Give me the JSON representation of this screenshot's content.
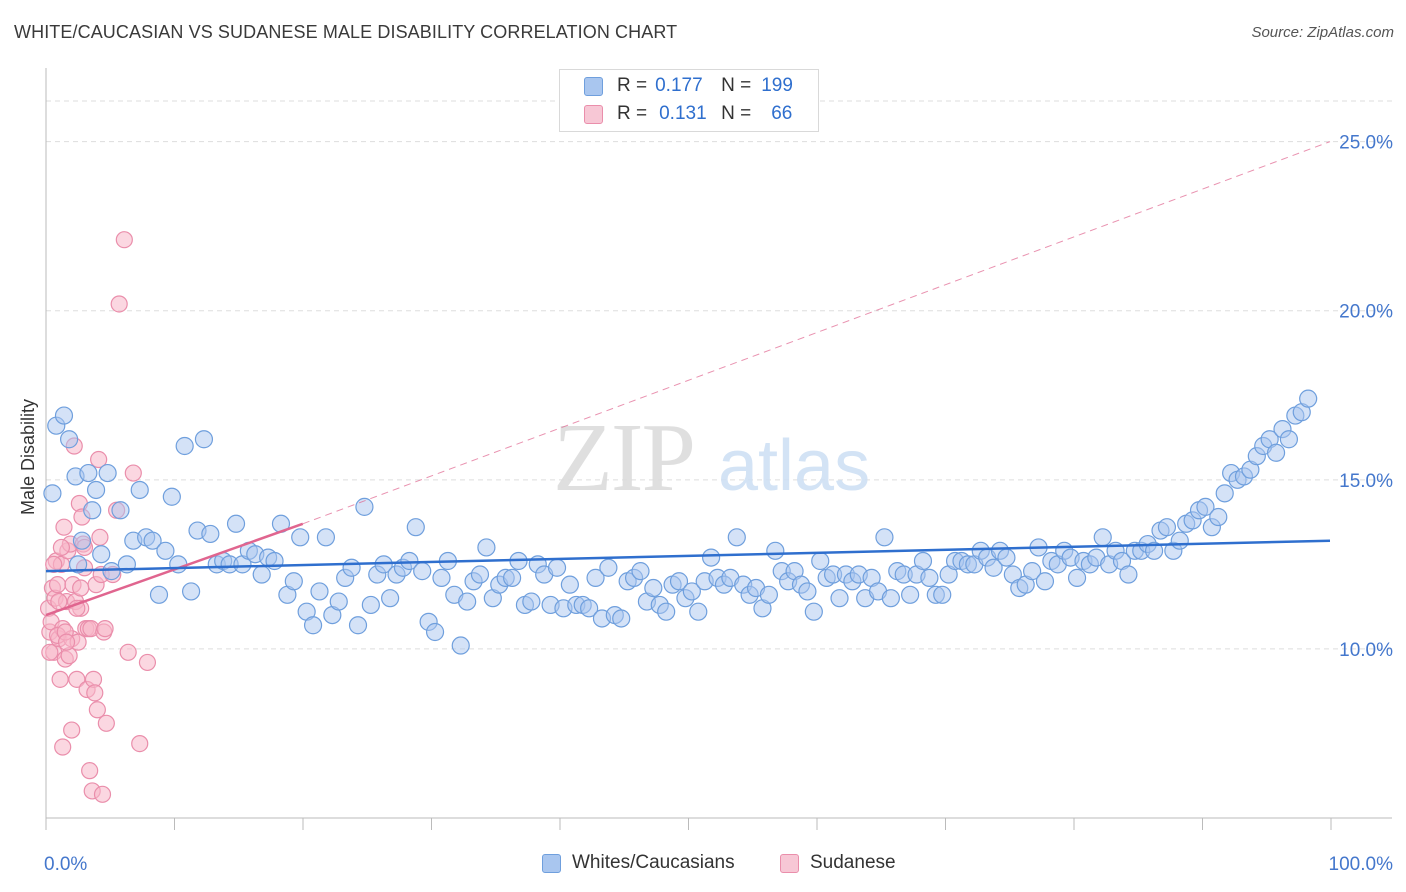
{
  "header": {
    "title": "WHITE/CAUCASIAN VS SUDANESE MALE DISABILITY CORRELATION CHART",
    "source": "Source: ZipAtlas.com"
  },
  "legend": {
    "row1": {
      "r_label": "R =",
      "r_value": "0.177",
      "n_label": "N =",
      "n_value": "199"
    },
    "row2": {
      "r_label": "R =",
      "r_value": "0.131",
      "n_label": "N =",
      "n_value": "66"
    }
  },
  "bottom_legend": {
    "series1": "Whites/Caucasians",
    "series2": "Sudanese"
  },
  "watermark": {
    "zip": "ZIP",
    "atlas": "atlas"
  },
  "colors": {
    "blue_fill": "#a9c6ef",
    "blue_stroke": "#6f9fdd",
    "blue_line": "#2f6fce",
    "pink_fill": "#f7b7c9",
    "pink_stroke": "#ea8eab",
    "pink_line": "#e0658f",
    "grid": "#dddddd",
    "tick_text": "#4477cc"
  },
  "chart_data": {
    "type": "scatter",
    "title": "WHITE/CAUCASIAN VS SUDANESE MALE DISABILITY CORRELATION CHART",
    "xlabel": "",
    "ylabel": "Male Disability",
    "xlim": [
      0,
      100
    ],
    "ylim": [
      5,
      27
    ],
    "x_tick_labels": [
      "0.0%",
      "100.0%"
    ],
    "y_ticks": [
      10,
      15,
      20,
      25
    ],
    "y_tick_labels": [
      "10.0%",
      "15.0%",
      "20.0%",
      "25.0%"
    ],
    "grid": true,
    "legend_position": "top-center",
    "series": [
      {
        "name": "Whites/Caucasians",
        "R": 0.177,
        "N": 199,
        "trend": {
          "x0": 0,
          "y0": 12.3,
          "x1": 100,
          "y1": 13.2
        },
        "points": [
          [
            0.5,
            14.6
          ],
          [
            0.8,
            16.6
          ],
          [
            1.4,
            16.9
          ],
          [
            1.8,
            16.2
          ],
          [
            2.3,
            15.1
          ],
          [
            2.5,
            12.5
          ],
          [
            2.8,
            13.2
          ],
          [
            3.3,
            15.2
          ],
          [
            3.6,
            14.1
          ],
          [
            3.9,
            14.7
          ],
          [
            4.3,
            12.8
          ],
          [
            4.8,
            15.2
          ],
          [
            5.1,
            12.3
          ],
          [
            5.8,
            14.1
          ],
          [
            6.3,
            12.5
          ],
          [
            6.8,
            13.2
          ],
          [
            7.3,
            14.7
          ],
          [
            7.8,
            13.3
          ],
          [
            8.3,
            13.2
          ],
          [
            8.8,
            11.6
          ],
          [
            9.3,
            12.9
          ],
          [
            9.8,
            14.5
          ],
          [
            10.3,
            12.5
          ],
          [
            10.8,
            16.0
          ],
          [
            11.3,
            11.7
          ],
          [
            11.8,
            13.5
          ],
          [
            12.3,
            16.2
          ],
          [
            12.8,
            13.4
          ],
          [
            13.3,
            12.5
          ],
          [
            13.8,
            12.6
          ],
          [
            14.3,
            12.5
          ],
          [
            14.8,
            13.7
          ],
          [
            15.3,
            12.5
          ],
          [
            15.8,
            12.9
          ],
          [
            16.3,
            12.8
          ],
          [
            16.8,
            12.2
          ],
          [
            17.3,
            12.7
          ],
          [
            17.8,
            12.6
          ],
          [
            18.3,
            13.7
          ],
          [
            18.8,
            11.6
          ],
          [
            19.3,
            12.0
          ],
          [
            19.8,
            13.3
          ],
          [
            20.3,
            11.1
          ],
          [
            20.8,
            10.7
          ],
          [
            21.3,
            11.7
          ],
          [
            21.8,
            13.3
          ],
          [
            22.3,
            11.0
          ],
          [
            22.8,
            11.4
          ],
          [
            23.3,
            12.1
          ],
          [
            23.8,
            12.4
          ],
          [
            24.3,
            10.7
          ],
          [
            24.8,
            14.2
          ],
          [
            25.3,
            11.3
          ],
          [
            25.8,
            12.2
          ],
          [
            26.3,
            12.5
          ],
          [
            26.8,
            11.5
          ],
          [
            27.3,
            12.2
          ],
          [
            27.8,
            12.4
          ],
          [
            28.3,
            12.6
          ],
          [
            28.8,
            13.6
          ],
          [
            29.3,
            12.3
          ],
          [
            29.8,
            10.8
          ],
          [
            30.3,
            10.5
          ],
          [
            30.8,
            12.1
          ],
          [
            31.3,
            12.6
          ],
          [
            31.8,
            11.6
          ],
          [
            32.3,
            10.1
          ],
          [
            32.8,
            11.4
          ],
          [
            33.3,
            12.0
          ],
          [
            33.8,
            12.2
          ],
          [
            34.3,
            13.0
          ],
          [
            34.8,
            11.5
          ],
          [
            35.3,
            11.9
          ],
          [
            35.8,
            12.1
          ],
          [
            36.3,
            12.1
          ],
          [
            36.8,
            12.6
          ],
          [
            37.3,
            11.3
          ],
          [
            37.8,
            11.4
          ],
          [
            38.3,
            12.5
          ],
          [
            38.8,
            12.2
          ],
          [
            39.3,
            11.3
          ],
          [
            39.8,
            12.4
          ],
          [
            40.3,
            11.2
          ],
          [
            40.8,
            11.9
          ],
          [
            41.3,
            11.3
          ],
          [
            41.8,
            11.3
          ],
          [
            42.3,
            11.2
          ],
          [
            42.8,
            12.1
          ],
          [
            43.3,
            10.9
          ],
          [
            43.8,
            12.4
          ],
          [
            44.3,
            11.0
          ],
          [
            44.8,
            10.9
          ],
          [
            45.3,
            12.0
          ],
          [
            45.8,
            12.1
          ],
          [
            46.3,
            12.3
          ],
          [
            46.8,
            11.4
          ],
          [
            47.3,
            11.8
          ],
          [
            47.8,
            11.3
          ],
          [
            48.3,
            11.1
          ],
          [
            48.8,
            11.9
          ],
          [
            49.3,
            12.0
          ],
          [
            49.8,
            11.5
          ],
          [
            50.3,
            11.7
          ],
          [
            50.8,
            11.1
          ],
          [
            51.3,
            12.0
          ],
          [
            51.8,
            12.7
          ],
          [
            52.3,
            12.1
          ],
          [
            52.8,
            11.9
          ],
          [
            53.3,
            12.1
          ],
          [
            53.8,
            13.3
          ],
          [
            54.3,
            11.9
          ],
          [
            54.8,
            11.6
          ],
          [
            55.3,
            11.8
          ],
          [
            55.8,
            11.2
          ],
          [
            56.3,
            11.6
          ],
          [
            56.8,
            12.9
          ],
          [
            57.3,
            12.3
          ],
          [
            57.8,
            12.0
          ],
          [
            58.3,
            12.3
          ],
          [
            58.8,
            11.9
          ],
          [
            59.3,
            11.7
          ],
          [
            59.8,
            11.1
          ],
          [
            60.3,
            12.6
          ],
          [
            60.8,
            12.1
          ],
          [
            61.3,
            12.2
          ],
          [
            61.8,
            11.5
          ],
          [
            62.3,
            12.2
          ],
          [
            62.8,
            12.0
          ],
          [
            63.3,
            12.2
          ],
          [
            63.8,
            11.5
          ],
          [
            64.3,
            12.1
          ],
          [
            64.8,
            11.7
          ],
          [
            65.3,
            13.3
          ],
          [
            65.8,
            11.5
          ],
          [
            66.3,
            12.3
          ],
          [
            66.8,
            12.2
          ],
          [
            67.3,
            11.6
          ],
          [
            67.8,
            12.2
          ],
          [
            68.3,
            12.6
          ],
          [
            68.8,
            12.1
          ],
          [
            69.3,
            11.6
          ],
          [
            69.8,
            11.6
          ],
          [
            70.3,
            12.2
          ],
          [
            70.8,
            12.6
          ],
          [
            71.3,
            12.6
          ],
          [
            71.8,
            12.5
          ],
          [
            72.3,
            12.5
          ],
          [
            72.8,
            12.9
          ],
          [
            73.3,
            12.7
          ],
          [
            73.8,
            12.4
          ],
          [
            74.3,
            12.9
          ],
          [
            74.8,
            12.7
          ],
          [
            75.3,
            12.2
          ],
          [
            75.8,
            11.8
          ],
          [
            76.3,
            11.9
          ],
          [
            76.8,
            12.3
          ],
          [
            77.3,
            13.0
          ],
          [
            77.8,
            12.0
          ],
          [
            78.3,
            12.6
          ],
          [
            78.8,
            12.5
          ],
          [
            79.3,
            12.9
          ],
          [
            79.8,
            12.7
          ],
          [
            80.3,
            12.1
          ],
          [
            80.8,
            12.6
          ],
          [
            81.3,
            12.5
          ],
          [
            81.8,
            12.7
          ],
          [
            82.3,
            13.3
          ],
          [
            82.8,
            12.5
          ],
          [
            83.3,
            12.9
          ],
          [
            83.8,
            12.6
          ],
          [
            84.3,
            12.2
          ],
          [
            84.8,
            12.9
          ],
          [
            85.3,
            12.9
          ],
          [
            85.8,
            13.1
          ],
          [
            86.3,
            12.9
          ],
          [
            86.8,
            13.5
          ],
          [
            87.3,
            13.6
          ],
          [
            87.8,
            12.9
          ],
          [
            88.3,
            13.2
          ],
          [
            88.8,
            13.7
          ],
          [
            89.3,
            13.8
          ],
          [
            89.8,
            14.1
          ],
          [
            90.3,
            14.2
          ],
          [
            90.8,
            13.6
          ],
          [
            91.3,
            13.9
          ],
          [
            91.8,
            14.6
          ],
          [
            92.3,
            15.2
          ],
          [
            92.8,
            15.0
          ],
          [
            93.3,
            15.1
          ],
          [
            93.8,
            15.3
          ],
          [
            94.3,
            15.7
          ],
          [
            94.8,
            16.0
          ],
          [
            95.3,
            16.2
          ],
          [
            95.8,
            15.8
          ],
          [
            96.3,
            16.5
          ],
          [
            96.8,
            16.2
          ],
          [
            97.3,
            16.9
          ],
          [
            97.8,
            17.0
          ],
          [
            98.3,
            17.4
          ]
        ]
      },
      {
        "name": "Sudanese",
        "R": 0.131,
        "N": 66,
        "trend": {
          "x0": 0,
          "y0": 11.0,
          "x1": 20,
          "y1": 13.7,
          "dashed_extension_to": {
            "x": 100,
            "y": 25.0
          }
        },
        "points": [
          [
            0.2,
            11.2
          ],
          [
            0.3,
            10.5
          ],
          [
            0.4,
            10.8
          ],
          [
            0.5,
            11.8
          ],
          [
            0.6,
            9.9
          ],
          [
            0.7,
            11.5
          ],
          [
            0.8,
            12.6
          ],
          [
            0.9,
            11.9
          ],
          [
            1.0,
            10.3
          ],
          [
            1.1,
            9.1
          ],
          [
            1.2,
            12.5
          ],
          [
            1.3,
            10.6
          ],
          [
            1.4,
            13.6
          ],
          [
            1.5,
            9.7
          ],
          [
            1.6,
            11.4
          ],
          [
            1.7,
            12.9
          ],
          [
            1.8,
            9.8
          ],
          [
            1.9,
            13.1
          ],
          [
            2.0,
            10.3
          ],
          [
            2.1,
            11.9
          ],
          [
            2.2,
            16.0
          ],
          [
            2.3,
            11.4
          ],
          [
            2.4,
            9.1
          ],
          [
            2.5,
            10.2
          ],
          [
            2.6,
            14.3
          ],
          [
            2.7,
            11.2
          ],
          [
            2.8,
            13.9
          ],
          [
            2.9,
            13.1
          ],
          [
            3.0,
            12.4
          ],
          [
            3.1,
            10.6
          ],
          [
            3.2,
            8.8
          ],
          [
            3.3,
            10.6
          ],
          [
            3.4,
            6.4
          ],
          [
            3.5,
            10.6
          ],
          [
            3.6,
            5.8
          ],
          [
            3.7,
            9.1
          ],
          [
            3.8,
            8.7
          ],
          [
            3.9,
            11.9
          ],
          [
            4.0,
            8.2
          ],
          [
            4.1,
            15.6
          ],
          [
            4.2,
            13.3
          ],
          [
            4.3,
            12.2
          ],
          [
            4.4,
            5.7
          ],
          [
            4.5,
            10.5
          ],
          [
            4.6,
            10.6
          ],
          [
            4.7,
            7.8
          ],
          [
            5.2,
            12.2
          ],
          [
            5.5,
            14.1
          ],
          [
            5.7,
            20.2
          ],
          [
            6.1,
            22.1
          ],
          [
            6.4,
            9.9
          ],
          [
            6.8,
            15.2
          ],
          [
            7.3,
            7.2
          ],
          [
            7.9,
            9.6
          ],
          [
            1.3,
            7.1
          ],
          [
            2.0,
            7.6
          ],
          [
            0.9,
            10.4
          ],
          [
            1.5,
            10.5
          ],
          [
            0.6,
            12.5
          ],
          [
            1.0,
            11.4
          ],
          [
            2.4,
            11.2
          ],
          [
            3.0,
            13.0
          ],
          [
            1.6,
            10.2
          ],
          [
            0.3,
            9.9
          ],
          [
            1.2,
            13.0
          ],
          [
            2.7,
            11.8
          ]
        ]
      }
    ]
  }
}
